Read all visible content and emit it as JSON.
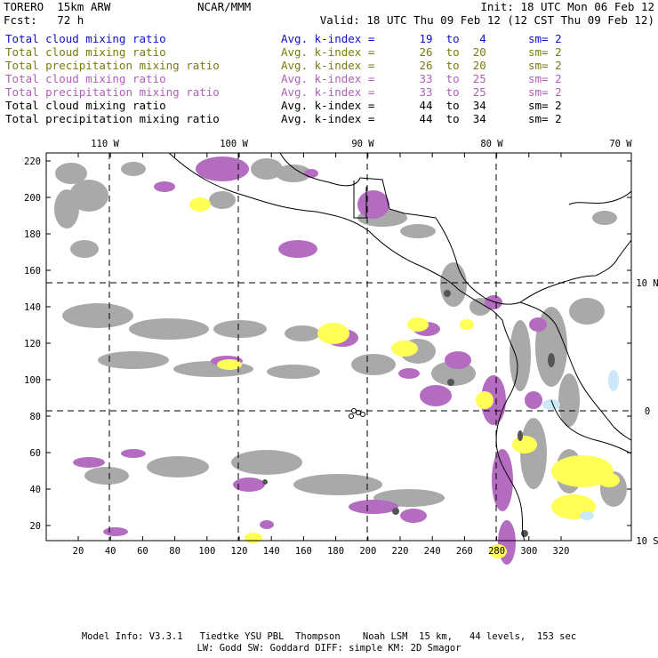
{
  "header": {
    "model": "TORERO  15km ARW",
    "org": "NCAR/MMM",
    "init": "Init: 18 UTC Mon 06 Feb 12",
    "fcst": "Fcst:   72 h",
    "valid": "Valid: 18 UTC Thu 09 Feb 12 (12 CST Thu 09 Feb 12)"
  },
  "fields": [
    {
      "name": "Total cloud mixing ratio",
      "avg": "Avg. k-index =",
      "from": "19",
      "to_word": "to",
      "to": "4",
      "sm": "sm= 2",
      "color": "#1010c8"
    },
    {
      "name": "Total cloud mixing ratio",
      "avg": "Avg. k-index =",
      "from": "26",
      "to_word": "to",
      "to": "20",
      "sm": "sm= 2",
      "color": "#7a7a10"
    },
    {
      "name": "Total precipitation mixing ratio",
      "avg": "Avg. k-index =",
      "from": "26",
      "to_word": "to",
      "to": "20",
      "sm": "sm= 2",
      "color": "#7a7a10"
    },
    {
      "name": "Total cloud mixing ratio",
      "avg": "Avg. k-index =",
      "from": "33",
      "to_word": "to",
      "to": "25",
      "sm": "sm= 2",
      "color": "#b060b8"
    },
    {
      "name": "Total precipitation mixing ratio",
      "avg": "Avg. k-index =",
      "from": "33",
      "to_word": "to",
      "to": "25",
      "sm": "sm= 2",
      "color": "#b060b8"
    },
    {
      "name": "Total cloud mixing ratio",
      "avg": "Avg. k-index =",
      "from": "44",
      "to_word": "to",
      "to": "34",
      "sm": "sm= 2",
      "color": "#000000"
    },
    {
      "name": "Total precipitation mixing ratio",
      "avg": "Avg. k-index =",
      "from": "44",
      "to_word": "to",
      "to": "34",
      "sm": "sm= 2",
      "color": "#000000"
    }
  ],
  "map": {
    "lon_labels": [
      "110 W",
      "100 W",
      "90 W",
      "80 W",
      "70 W"
    ],
    "lat_labels": [
      "10 N",
      "0",
      "10 S"
    ],
    "y_ticks": [
      "220",
      "200",
      "180",
      "160",
      "140",
      "120",
      "100",
      "80",
      "60",
      "40",
      "20"
    ],
    "x_ticks": [
      "20",
      "40",
      "60",
      "80",
      "100",
      "120",
      "140",
      "160",
      "180",
      "200",
      "220",
      "240",
      "260",
      "280",
      "300",
      "320"
    ],
    "colors": {
      "cloud_gray": "#a9a9a9",
      "precip_yellow": "#ffff55",
      "cloud_purple": "#b46cc0",
      "dark_core": "#555555",
      "light_blue": "#cce8f8"
    }
  },
  "footer": {
    "line1": "Model Info: V3.3.1   Tiedtke YSU PBL  Thompson    Noah LSM  15 km,   44 levels,  153 sec",
    "line2": "LW: Godd SW: Goddard DIFF: simple KM: 2D Smagor"
  }
}
